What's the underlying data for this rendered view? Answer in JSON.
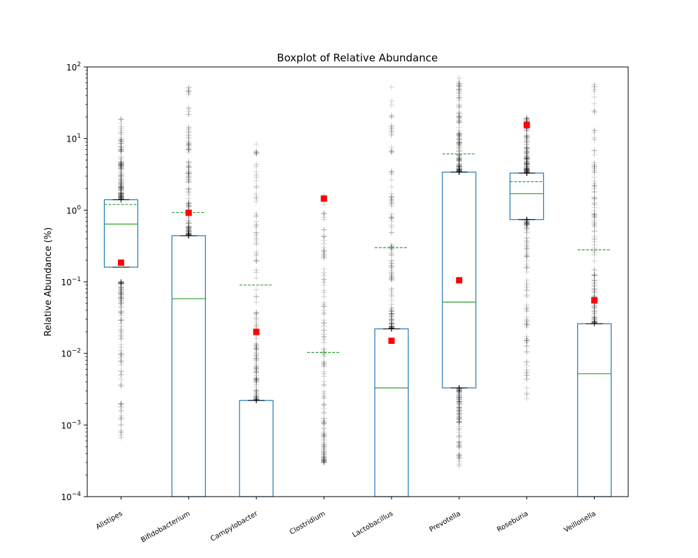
{
  "chart_data": {
    "type": "box",
    "title": "Boxplot of Relative Abundance",
    "xlabel": "",
    "ylabel": "Relative Abundance (%)",
    "yscale": "log",
    "ylim": [
      0.0001,
      100
    ],
    "yticks": [
      0.0001,
      0.001,
      0.01,
      0.1,
      1,
      10,
      100
    ],
    "ytick_labels": [
      {
        "base": "10",
        "exp": "−4"
      },
      {
        "base": "10",
        "exp": "−3"
      },
      {
        "base": "10",
        "exp": "−2"
      },
      {
        "base": "10",
        "exp": "−1"
      },
      {
        "base": "10",
        "exp": "0"
      },
      {
        "base": "10",
        "exp": "1"
      },
      {
        "base": "10",
        "exp": "2"
      }
    ],
    "categories": [
      "Alistipes",
      "Bifidobacterium",
      "Campylobacter",
      "Clostridium",
      "Lactobacillus",
      "Prevotella",
      "Roseburia",
      "Veillonella"
    ],
    "boxes": [
      {
        "q1": 0.16,
        "median": 0.64,
        "q3": 1.4,
        "mean": 1.2,
        "marker": 0.185,
        "outliers_low": [
          0.0006,
          0.1
        ],
        "outliers_high": [
          1.4,
          19
        ]
      },
      {
        "q1": 0.0001,
        "median": 0.058,
        "q3": 0.44,
        "mean": 0.93,
        "marker": 0.92,
        "outliers_low": null,
        "outliers_high": [
          0.44,
          56
        ]
      },
      {
        "q1": 0.0001,
        "median": null,
        "q3": 0.0022,
        "mean": 0.09,
        "marker": 0.02,
        "outliers_low": null,
        "outliers_high": [
          0.0022,
          13
        ]
      },
      {
        "q1": null,
        "median": null,
        "q3": null,
        "mean": 0.0103,
        "marker": 1.45,
        "outliers_low": null,
        "outliers_high": [
          0.0003,
          1.7
        ]
      },
      {
        "q1": 0.0001,
        "median": 0.0033,
        "q3": 0.022,
        "mean": 0.3,
        "marker": 0.015,
        "outliers_low": null,
        "outliers_high": [
          0.022,
          90
        ]
      },
      {
        "q1": 0.0033,
        "median": 0.052,
        "q3": 3.4,
        "mean": 6.1,
        "marker": 0.105,
        "outliers_low": [
          0.00023,
          0.0033
        ],
        "outliers_high": [
          3.4,
          72
        ]
      },
      {
        "q1": 0.74,
        "median": 1.7,
        "q3": 3.3,
        "mean": 2.5,
        "marker": 15.5,
        "outliers_low": [
          0.0022,
          0.74
        ],
        "outliers_high": [
          3.3,
          22
        ]
      },
      {
        "q1": 0.0001,
        "median": 0.0052,
        "q3": 0.026,
        "mean": 0.28,
        "marker": 0.055,
        "outliers_low": null,
        "outliers_high": [
          0.026,
          58
        ]
      }
    ],
    "colors": {
      "box": "#1f77b4",
      "median": "#2ca02c",
      "mean": "#2ca02c",
      "marker": "#ff0000",
      "flier": "#000000"
    },
    "grid": false,
    "legend": "none"
  }
}
